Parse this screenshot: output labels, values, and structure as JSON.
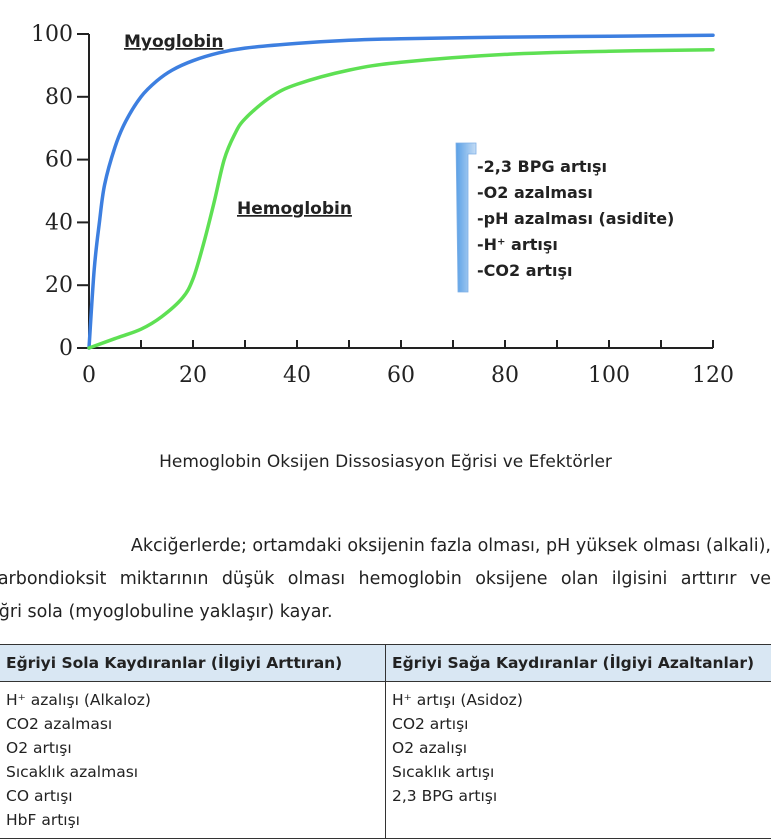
{
  "figure": {
    "chart_data": {
      "type": "line",
      "x_ticks": [
        0,
        20,
        40,
        60,
        80,
        100,
        120
      ],
      "y_ticks": [
        0,
        20,
        40,
        60,
        80,
        100
      ],
      "xlim": [
        0,
        120
      ],
      "ylim": [
        0,
        100
      ],
      "grid": false,
      "series": [
        {
          "name": "Myoglobin",
          "color": "#3d7fe0",
          "x": [
            0,
            1,
            2,
            3,
            5,
            7,
            10,
            13,
            16,
            20,
            25,
            30,
            40,
            50,
            60,
            80,
            100,
            120
          ],
          "y": [
            0,
            25,
            40,
            52,
            64,
            72,
            80,
            85,
            88.5,
            91.5,
            94,
            95.5,
            97,
            98,
            98.5,
            99,
            99.3,
            99.6
          ]
        },
        {
          "name": "Hemoglobin",
          "color": "#5ee053",
          "x": [
            0,
            5,
            10,
            14,
            18,
            20,
            22,
            24,
            26,
            28,
            30,
            35,
            40,
            50,
            60,
            80,
            100,
            120
          ],
          "y": [
            0,
            3,
            6,
            10,
            16,
            22,
            33,
            46,
            60,
            68,
            73,
            80,
            84,
            88.5,
            91,
            93.5,
            94.5,
            95
          ]
        }
      ],
      "annotation": {
        "color": "#5aa0e6",
        "items": [
          "-2,3 BPG artışı",
          "-O2 azalması",
          "-pH azalması (asidite)",
          "-H⁺ artışı",
          "-CO2 artışı"
        ]
      }
    },
    "caption": "Hemoglobin Oksijen Dissosiasyon Eğrisi ve Efektörler"
  },
  "paragraph": {
    "line1": "Akciğerlerde; ortamdaki oksijenin fazla olması, pH yüksek olması (alkali),",
    "line2": "karbondioksit miktarının düşük olması hemoglobin oksijene olan ilgisini arttırır ve",
    "line3": "eğri sola (myoglobuline yaklaşır) kayar."
  },
  "table": {
    "header_bg": "#d9e7f3",
    "left_header": "Eğriyi Sola Kaydıranlar (İlgiyi Arttıran)",
    "right_header": "Eğriyi Sağa Kaydıranlar (İlgiyi Azaltanlar)",
    "left_items": [
      "H⁺ azalışı (Alkaloz)",
      "CO2 azalması",
      "O2 artışı",
      "Sıcaklık azalması",
      "CO artışı",
      "HbF artışı"
    ],
    "right_items": [
      "H⁺ artışı (Asidoz)",
      "CO2 artışı",
      "O2 azalışı",
      "Sıcaklık artışı",
      "2,3 BPG artışı"
    ]
  }
}
